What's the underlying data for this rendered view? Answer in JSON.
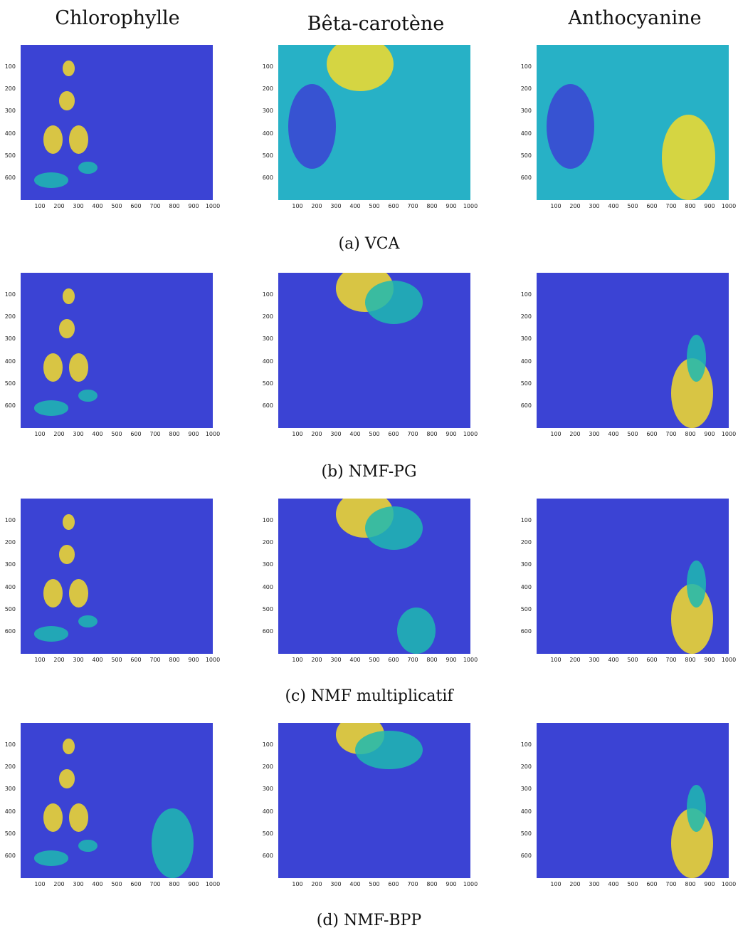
{
  "column_titles": [
    "Chlorophylle",
    "Bêta-carotène",
    "Anthocyanine"
  ],
  "rows": [
    {
      "caption": "(a) VCA"
    },
    {
      "caption": "(b) NMF-PG"
    },
    {
      "caption": "(c) NMF multiplicatif"
    },
    {
      "caption": "(d) NMF-BPP"
    }
  ],
  "axes": {
    "y_ticks": [
      "100",
      "200",
      "300",
      "400",
      "500",
      "600"
    ],
    "x_ticks": [
      "100",
      "200",
      "300",
      "400",
      "500",
      "600",
      "700",
      "800",
      "900",
      "1000"
    ]
  },
  "colors": {
    "low": "#3b43d4",
    "mid": "#1fb8b0",
    "high": "#f5dc2a",
    "background_vca": "#27b1c6"
  },
  "chart_data": {
    "type": "heatmap",
    "layout": "4 rows x 3 columns of abundance maps",
    "columns": [
      "Chlorophylle",
      "Bêta-carotène",
      "Anthocyanine"
    ],
    "rows": [
      "(a) VCA",
      "(b) NMF-PG",
      "(c) NMF multiplicatif",
      "(d) NMF-BPP"
    ],
    "x_range": [
      1,
      1000
    ],
    "y_range": [
      1,
      700
    ],
    "colormap": "parula"
  }
}
